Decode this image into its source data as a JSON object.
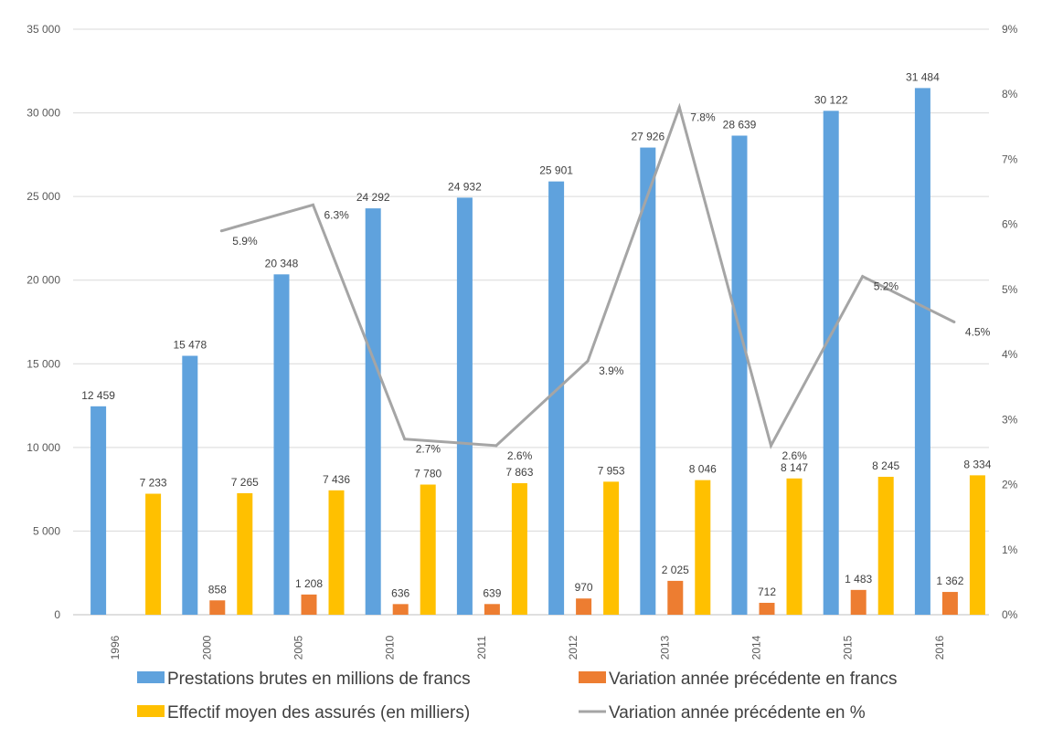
{
  "chart_data": {
    "type": "bar",
    "categories": [
      "1996",
      "2000",
      "2005",
      "2010",
      "2011",
      "2012",
      "2013",
      "2014",
      "2015",
      "2016"
    ],
    "series": [
      {
        "name": "Prestations brutes en millions de francs",
        "type": "bar",
        "axis": "left",
        "color": "#5fa2dd",
        "values": [
          12459,
          15478,
          20348,
          24292,
          24932,
          25901,
          27926,
          28639,
          30122,
          31484
        ],
        "labels": [
          "12 459",
          "15 478",
          "20 348",
          "24 292",
          "24 932",
          "25 901",
          "27 926",
          "28 639",
          "30 122",
          "31 484"
        ]
      },
      {
        "name": "Variation année précédente en francs",
        "type": "bar",
        "axis": "left",
        "color": "#ed7d31",
        "values": [
          null,
          858,
          1208,
          636,
          639,
          970,
          2025,
          712,
          1483,
          1362
        ],
        "labels": [
          "",
          "858",
          "1 208",
          "636",
          "639",
          "970",
          "2 025",
          "712",
          "1 483",
          "1 362"
        ]
      },
      {
        "name": "Effectif moyen des assurés (en milliers)",
        "type": "bar",
        "axis": "left",
        "color": "#ffc000",
        "values": [
          7233,
          7265,
          7436,
          7780,
          7863,
          7953,
          8046,
          8147,
          8245,
          8334
        ],
        "labels": [
          "7 233",
          "7 265",
          "7 436",
          "7 780",
          "7 863",
          "7 953",
          "8 046",
          "8 147",
          "8 245",
          "8 334"
        ]
      },
      {
        "name": "Variation année précédente en %",
        "type": "line",
        "axis": "right",
        "color": "#a5a5a5",
        "values": [
          null,
          5.9,
          6.3,
          2.7,
          2.6,
          3.9,
          7.8,
          2.6,
          5.2,
          4.5
        ],
        "labels": [
          "",
          "5.9%",
          "6.3%",
          "2.7%",
          "2.6%",
          "3.9%",
          "7.8%",
          "2.6%",
          "5.2%",
          "4.5%"
        ]
      }
    ],
    "y_left": {
      "min": 0,
      "max": 35000,
      "ticks": [
        0,
        5000,
        10000,
        15000,
        20000,
        25000,
        30000,
        35000
      ],
      "tick_labels": [
        "0",
        "5 000",
        "10 000",
        "15 000",
        "20 000",
        "25 000",
        "30 000",
        "35 000"
      ]
    },
    "y_right": {
      "min": 0,
      "max": 9,
      "ticks": [
        0,
        1,
        2,
        3,
        4,
        5,
        6,
        7,
        8,
        9
      ],
      "tick_labels": [
        "0%",
        "1%",
        "2%",
        "3%",
        "4%",
        "5%",
        "6%",
        "7%",
        "8%",
        "9%"
      ]
    },
    "grid": true,
    "legend_position": "bottom",
    "title": "",
    "xlabel": "",
    "ylabel": ""
  }
}
